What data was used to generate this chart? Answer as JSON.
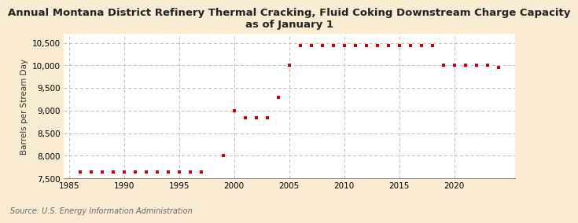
{
  "title": "Annual Montana District Refinery Thermal Cracking, Fluid Coking Downstream Charge Capacity\nas of January 1",
  "ylabel": "Barrels per Stream Day",
  "source": "Source: U.S. Energy Information Administration",
  "background_color": "#faecd2",
  "plot_bg_color": "#ffffff",
  "marker_color": "#cc0000",
  "grid_color": "#bbbbbb",
  "years": [
    1986,
    1987,
    1988,
    1989,
    1990,
    1991,
    1992,
    1993,
    1994,
    1995,
    1996,
    1997,
    1999,
    2000,
    2001,
    2002,
    2003,
    2004,
    2005,
    2006,
    2007,
    2008,
    2009,
    2010,
    2011,
    2012,
    2013,
    2014,
    2015,
    2016,
    2017,
    2018,
    2019,
    2020,
    2021,
    2022,
    2023,
    2024
  ],
  "values": [
    7650,
    7650,
    7650,
    7650,
    7650,
    7650,
    7650,
    7650,
    7650,
    7650,
    7650,
    7650,
    8000,
    9000,
    8850,
    8850,
    8850,
    9300,
    10000,
    10440,
    10440,
    10440,
    10440,
    10440,
    10440,
    10440,
    10440,
    10440,
    10440,
    10440,
    10440,
    10440,
    10000,
    10000,
    10000,
    10000,
    10000,
    9950
  ],
  "ylim": [
    7500,
    10700
  ],
  "yticks": [
    7500,
    8000,
    8500,
    9000,
    9500,
    10000,
    10500
  ],
  "ytick_labels": [
    "7,500",
    "8,000",
    "8,500",
    "9,000",
    "9,500",
    "10,000",
    "10,500"
  ],
  "xlim": [
    1984.5,
    2025.5
  ],
  "xticks": [
    1985,
    1990,
    1995,
    2000,
    2005,
    2010,
    2015,
    2020
  ],
  "title_fontsize": 9.5,
  "label_fontsize": 7.5,
  "tick_fontsize": 7.5,
  "source_fontsize": 7
}
